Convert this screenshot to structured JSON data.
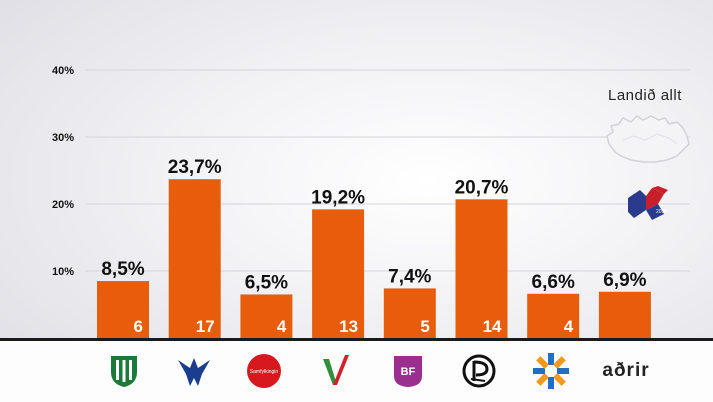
{
  "chart_data": {
    "type": "bar",
    "title": "",
    "xlabel": "",
    "ylabel": "",
    "ylim": [
      0,
      40
    ],
    "yticks": [
      "10%",
      "20%",
      "30%",
      "40%"
    ],
    "ytick_values": [
      10,
      20,
      30,
      40
    ],
    "grid": true,
    "bar_color": "#e85d0c",
    "categories": [
      "Framsóknarflokkurinn",
      "Sjálfstæðisflokkurinn",
      "Samfylkingin",
      "Vinstri græn",
      "Björt framtíð",
      "Píratar",
      "Viðreisn",
      "aðrir"
    ],
    "values": [
      8.5,
      23.7,
      6.5,
      19.2,
      7.4,
      20.7,
      6.6,
      6.9
    ],
    "value_labels": [
      "8,5%",
      "23,7%",
      "6,5%",
      "19,2%",
      "7,4%",
      "20,7%",
      "6,6%",
      "6,9%"
    ],
    "seat_labels": [
      "6",
      "17",
      "4",
      "13",
      "5",
      "14",
      "4",
      ""
    ]
  },
  "region": {
    "title": "Landið allt",
    "map_icon": "iceland-map-icon",
    "logo_icon": "election-logo-icon"
  },
  "party_icons": [
    "framsokn-logo-icon",
    "sjalfstaedis-logo-icon",
    "samfylking-logo-icon",
    "vinstri-graen-logo-icon",
    "bjort-framtid-logo-icon",
    "piratar-logo-icon",
    "vidreisn-logo-icon"
  ],
  "party_logo_texts": {
    "samfylking": "Samfylkingin",
    "bjort_framtid": "BF"
  },
  "others_label": "aðrir"
}
